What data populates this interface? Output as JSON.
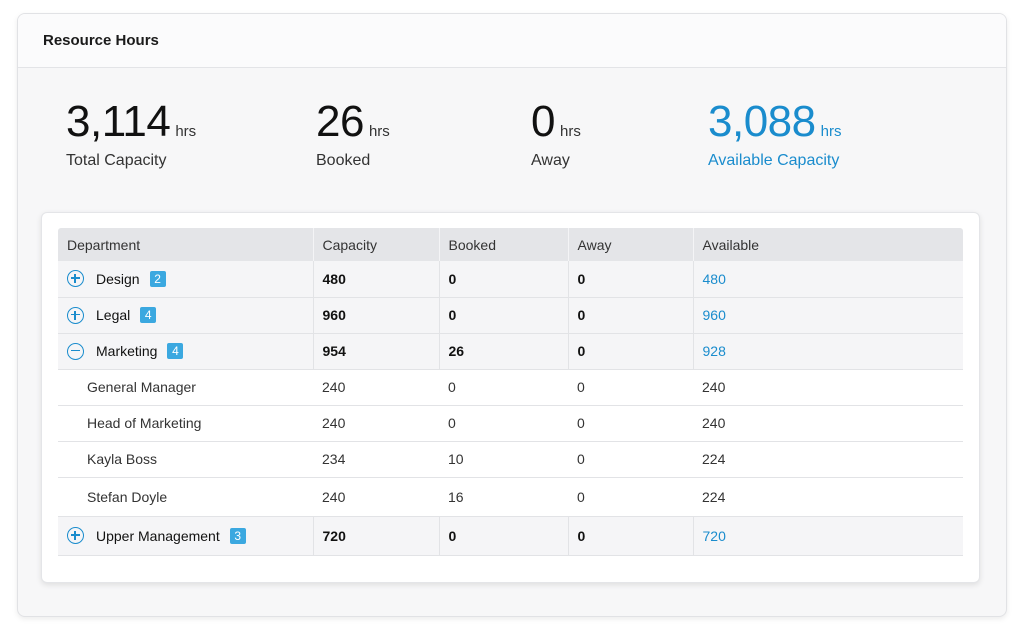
{
  "title": "Resource Hours",
  "stats": [
    {
      "value": "3,114",
      "unit": "hrs",
      "label": "Total Capacity"
    },
    {
      "value": "26",
      "unit": "hrs",
      "label": "Booked"
    },
    {
      "value": "0",
      "unit": "hrs",
      "label": "Away"
    },
    {
      "value": "3,088",
      "unit": "hrs",
      "label": "Available Capacity"
    }
  ],
  "colors": {
    "accent": "#1a8ccd",
    "badge": "#3ba8e0",
    "header_bg": "#e4e5e8"
  },
  "table": {
    "columns": [
      "Department",
      "Capacity",
      "Booked",
      "Away",
      "Available"
    ],
    "rows": [
      {
        "type": "group",
        "expanded": false,
        "toggle_icon": "plus-circle-icon",
        "name": "Design",
        "count": "2",
        "capacity": "480",
        "booked": "0",
        "away": "0",
        "available": "480"
      },
      {
        "type": "group",
        "expanded": false,
        "toggle_icon": "plus-circle-icon",
        "name": "Legal",
        "count": "4",
        "capacity": "960",
        "booked": "0",
        "away": "0",
        "available": "960"
      },
      {
        "type": "group",
        "expanded": true,
        "toggle_icon": "minus-circle-icon",
        "name": "Marketing",
        "count": "4",
        "capacity": "954",
        "booked": "26",
        "away": "0",
        "available": "928"
      },
      {
        "type": "member",
        "name": "General Manager",
        "capacity": "240",
        "booked": "0",
        "away": "0",
        "available": "240"
      },
      {
        "type": "member",
        "name": "Head of Marketing",
        "capacity": "240",
        "booked": "0",
        "away": "0",
        "available": "240"
      },
      {
        "type": "member",
        "name": "Kayla Boss",
        "capacity": "234",
        "booked": "10",
        "away": "0",
        "available": "224"
      },
      {
        "type": "member",
        "name": "Stefan Doyle",
        "capacity": "240",
        "booked": "16",
        "away": "0",
        "available": "224"
      },
      {
        "type": "group",
        "expanded": false,
        "toggle_icon": "plus-circle-icon",
        "name": "Upper Management",
        "count": "3",
        "capacity": "720",
        "booked": "0",
        "away": "0",
        "available": "720"
      }
    ]
  }
}
